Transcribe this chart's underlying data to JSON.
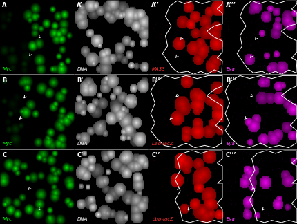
{
  "figsize": [
    4.31,
    3.24
  ],
  "dpi": 100,
  "nrows": 3,
  "ncols": 4,
  "panels": [
    {
      "row": 0,
      "col": 0,
      "label": "A",
      "channel": "green",
      "sublabel": "Myc"
    },
    {
      "row": 0,
      "col": 1,
      "label": "A’",
      "channel": "gray",
      "sublabel": "DNA"
    },
    {
      "row": 0,
      "col": 2,
      "label": "A’’",
      "channel": "red",
      "sublabel": "MA33"
    },
    {
      "row": 0,
      "col": 3,
      "label": "A’’’",
      "channel": "magenta",
      "sublabel": "Eya"
    },
    {
      "row": 1,
      "col": 0,
      "label": "B",
      "channel": "green",
      "sublabel": "Myc"
    },
    {
      "row": 1,
      "col": 1,
      "label": "B’",
      "channel": "gray",
      "sublabel": "DNA"
    },
    {
      "row": 1,
      "col": 2,
      "label": "B’’",
      "channel": "red",
      "sublabel": "Dad-lacZ"
    },
    {
      "row": 1,
      "col": 3,
      "label": "B’’’",
      "channel": "magenta",
      "sublabel": "Eya"
    },
    {
      "row": 2,
      "col": 0,
      "label": "C",
      "channel": "green",
      "sublabel": "Myc"
    },
    {
      "row": 2,
      "col": 1,
      "label": "C’",
      "channel": "gray",
      "sublabel": "DNA"
    },
    {
      "row": 2,
      "col": 2,
      "label": "C’’",
      "channel": "red",
      "sublabel": "dpp-lacZ"
    },
    {
      "row": 2,
      "col": 3,
      "label": "C’’’",
      "channel": "magenta",
      "sublabel": "Eya"
    }
  ],
  "sublabel_colors": {
    "green": "#00ff00",
    "gray": "#ffffff",
    "red": "#ff3333",
    "magenta": "#ff44ff"
  },
  "label_fontsize": 6,
  "sublabel_fontsize": 5
}
